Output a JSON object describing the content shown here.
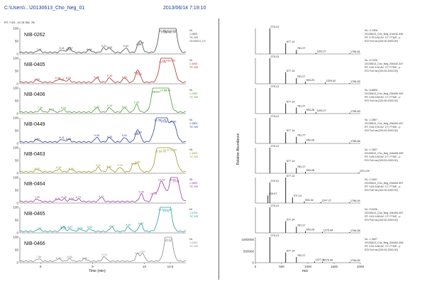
{
  "header": {
    "file_path": "C:\\Users\\...\\20130613_Cho_Neg_01",
    "datetime": "2013/06/14 7:19:10",
    "rt_info": "RT: 7.63 - 10.78  SM: 7B"
  },
  "chart_data": [
    {
      "type": "line",
      "xlabel": "Time (min)",
      "ylabel": "Relative Abundance",
      "xlim": [
        7.6,
        10.8
      ],
      "ylim": [
        0,
        100
      ],
      "x_ticks": [
        "8",
        "9",
        "10",
        "10.5"
      ],
      "y_ticks": [
        "0",
        "50",
        "100"
      ],
      "panels": [
        {
          "name": "NIB-0262",
          "color": "#4a4a4a",
          "peak_labels": [
            "10.42",
            "10.44",
            "10.35",
            "10.38",
            "10.55",
            "10.54",
            "9.94",
            "9.89",
            "9.64",
            "9.33",
            "9.22",
            "8.94",
            "8.57",
            "8.54",
            "8.41",
            "7.97"
          ],
          "side_labels": [
            "NL",
            "1.08E6",
            "TIC MS",
            "20130613_Ch"
          ]
        },
        {
          "name": "NIB-0405",
          "color": "#a83232",
          "peak_labels": [
            "10.41",
            "10.35",
            "10.53",
            "9.90",
            "9.85",
            "9.62",
            "9.33",
            "9.08",
            "8.54",
            "8.41",
            "8.33",
            "7.93"
          ],
          "side_labels": [
            "NL",
            "1.44E6",
            "TIC MS"
          ]
        },
        {
          "name": "NIB-0406",
          "color": "#4f9a3a",
          "peak_labels": [
            "10.37",
            "10.24",
            "10.44",
            "10.21",
            "9.85",
            "9.62",
            "9.33",
            "9.08",
            "8.44",
            "8.21",
            "7.99"
          ],
          "side_labels": [
            "NL",
            "1.24E6",
            "TIC MS"
          ]
        },
        {
          "name": "NIB-0449",
          "color": "#2e3f8f",
          "peak_labels": [
            "10.35",
            "10.38",
            "10.25",
            "10.55",
            "9.90",
            "9.85",
            "9.62",
            "9.33",
            "9.08",
            "8.54",
            "8.41",
            "7.93"
          ],
          "side_labels": [
            "NL",
            "1.35E6",
            "TIC MS"
          ]
        },
        {
          "name": "NIB-0463",
          "color": "#9a9a2a",
          "peak_labels": [
            "10.42",
            "10.35",
            "10.56",
            "10.27",
            "9.87",
            "9.79",
            "9.53",
            "9.32",
            "9.11",
            "8.59",
            "8.35",
            "7.93"
          ],
          "side_labels": [
            "NL",
            "1.40E6",
            "TIC MS"
          ]
        },
        {
          "name": "NIB-0464",
          "color": "#9a3a9a",
          "peak_labels": [
            "10.54",
            "10.61",
            "10.33",
            "10.18",
            "9.94",
            "9.17",
            "8.73",
            "8.59",
            "8.45",
            "8.33",
            "7.93"
          ],
          "side_labels": [
            "NL",
            "1.08E6",
            "TIC MS"
          ]
        },
        {
          "name": "NIB-0465",
          "color": "#2a9a9a",
          "peak_labels": [
            "10.46",
            "10.42",
            "10.33",
            "9.93",
            "9.69",
            "9.37",
            "8.95",
            "8.76",
            "8.57",
            "8.44",
            "8.43",
            "7.97"
          ],
          "side_labels": [
            "NL",
            "1.37E6",
            "TIC MS"
          ]
        },
        {
          "name": "NIB-0466",
          "color": "#8a8a8a",
          "peak_labels": [
            "10.47",
            "10.46",
            "9.97",
            "9.87",
            "9.23",
            "8.85",
            "8.56",
            "8.35",
            "7.96"
          ],
          "side_labels": [
            "NL",
            "1.02E6",
            "TIC MS"
          ]
        }
      ]
    },
    {
      "type": "bar",
      "xlabel": "m/z",
      "ylabel": "Relative Abundance",
      "xlim": [
        0,
        2000
      ],
      "x_ticks": [
        "0",
        "500",
        "1000",
        "1500",
        "2000"
      ],
      "bottom_y_ticks": [
        "0",
        "500000",
        "1000000"
      ],
      "series": [
        {
          "peaks": [
            {
              "mz": 275.13,
              "rel": 100
            },
            {
              "mz": 577.14,
              "rel": 42
            },
            {
              "mz": 781.27,
              "rel": 16
            },
            {
              "mz": 1153.27,
              "rel": 4
            },
            {
              "mz": 1796.81,
              "rel": 3
            }
          ],
          "labels": [
            "275.13",
            "577.14",
            "781.27",
            "1153.27",
            "1796.81"
          ],
          "side_labels": [
            "NL: 3.70E6",
            "20130613_Cho_Neg_01#442-446",
            "RT: 9.75-9.84 AV: 3 T: FTMS - p",
            "ESI Full ms [100.00-2000.00]"
          ]
        },
        {
          "peaks": [
            {
              "mz": 275.13,
              "rel": 100
            },
            {
              "mz": 577.14,
              "rel": 45
            },
            {
              "mz": 781.27,
              "rel": 22
            },
            {
              "mz": 953.29,
              "rel": 8
            },
            {
              "mz": 1329.42,
              "rel": 5
            },
            {
              "mz": 1796.83,
              "rel": 3
            }
          ],
          "labels": [
            "275.13",
            "577.14",
            "781.27",
            "953.29",
            "1329.42",
            "1796.83"
          ],
          "side_labels": [
            "NL: 6.71E6",
            "20130613_Cho_Neg_03#442-447",
            "RT: 9.82-9.90 AV: 3 T: FTMS - p",
            "ESI Full ms [100.00-2000.00]"
          ]
        },
        {
          "peaks": [
            {
              "mz": 275.13,
              "rel": 100
            },
            {
              "mz": 577.14,
              "rel": 40
            },
            {
              "mz": 781.27,
              "rel": 24
            },
            {
              "mz": 953.28,
              "rel": 9
            },
            {
              "mz": 1153.27,
              "rel": 5
            },
            {
              "mz": 1796.83,
              "rel": 3
            }
          ],
          "labels": [
            "275.13",
            "577.14",
            "781.27",
            "953.28",
            "1153.27",
            "1796.83"
          ],
          "side_labels": [
            "NL: 6.66E6",
            "20130613_Cho_Neg_03#450-453",
            "RT: 9.85-9.89 AV: 3 T: FTMS - p",
            "ESI Full ms [100.00-2000.00]"
          ]
        },
        {
          "peaks": [
            {
              "mz": 275.13,
              "rel": 100
            },
            {
              "mz": 577.14,
              "rel": 44
            },
            {
              "mz": 781.27,
              "rel": 26
            },
            {
              "mz": 953.28,
              "rel": 7
            },
            {
              "mz": 1796.86,
              "rel": 3
            }
          ],
          "labels": [
            "275.13",
            "577.14",
            "781.27",
            "953.28",
            "1796.86"
          ],
          "side_labels": [
            "NL: 1.39E7",
            "20130613_Cho_Neg_03#454-457",
            "RT: 9.84-9.90 AV: 3 T: FTMS - p",
            "ESI Full ms [100.00-2000.00]"
          ]
        },
        {
          "peaks": [
            {
              "mz": 275.13,
              "rel": 100
            },
            {
              "mz": 577.14,
              "rel": 42
            },
            {
              "mz": 781.27,
              "rel": 20
            },
            {
              "mz": 953.28,
              "rel": 6
            },
            {
              "mz": 1971.09,
              "rel": 3
            }
          ],
          "labels": [
            "275.13",
            "577.14",
            "781.27",
            "953.28",
            "1971.09"
          ],
          "side_labels": [
            "NL: 1.34E7",
            "20130613_Cho_Neg_03#455-459",
            "RT: 9.85-9.89 AV: 3 T: FTMS - p",
            "ESI Full ms [100.00-2000.00]"
          ]
        },
        {
          "peaks": [
            {
              "mz": 275.13,
              "rel": 80
            },
            {
              "mz": 577.14,
              "rel": 100
            },
            {
              "mz": 239.07,
              "rel": 30
            },
            {
              "mz": 707.19,
              "rel": 22
            },
            {
              "mz": 933.32,
              "rel": 6
            },
            {
              "mz": 1247.27,
              "rel": 4
            },
            {
              "mz": 1796.09,
              "rel": 3
            }
          ],
          "labels": [
            "275.13",
            "577.14",
            "239.07",
            "707.19",
            "933.32",
            "1247.27",
            "1796.09"
          ],
          "side_labels": [
            "NL: 1.04E7",
            "20130613_Cho_Neg_03#454-457",
            "RT: 9.81-9.86 AV: 3 T: FTMS - p",
            "ESI Full ms [100.00-2000.00]"
          ]
        },
        {
          "peaks": [
            {
              "mz": 275.13,
              "rel": 100
            },
            {
              "mz": 577.14,
              "rel": 46
            },
            {
              "mz": 781.27,
              "rel": 24
            },
            {
              "mz": 953.29,
              "rel": 7
            },
            {
              "mz": 1275.49,
              "rel": 4
            },
            {
              "mz": 1796.85,
              "rel": 3
            }
          ],
          "labels": [
            "275.13",
            "577.14",
            "781.27",
            "953.29",
            "1275.49",
            "1796.85"
          ],
          "side_labels": [
            "NL: 5.51E6",
            "20130613_Cho_Neg_03#454-457",
            "RT: 9.81-9.86 AV: 3 T: FTMS - p",
            "ESI Full ms [100.00-2000.00]"
          ]
        },
        {
          "peaks": [
            {
              "mz": 275.13,
              "rel": 100
            },
            {
              "mz": 577.14,
              "rel": 40
            },
            {
              "mz": 781.27,
              "rel": 22
            },
            {
              "mz": 1127.41,
              "rel": 5
            },
            {
              "mz": 1275.49,
              "rel": 4
            },
            {
              "mz": 1796.06,
              "rel": 3
            }
          ],
          "labels": [
            "275.13",
            "577.14",
            "781.27",
            "1127.41",
            "1275.49",
            "1796.06"
          ],
          "side_labels": [
            "NL: 1.34E7",
            "20130613_Cho_Neg_03#452-455",
            "RT: 9.81-9.86 AV: 3 T: FTMS - p",
            "ESI Full ms [100.00-2000.00]"
          ]
        }
      ]
    }
  ]
}
